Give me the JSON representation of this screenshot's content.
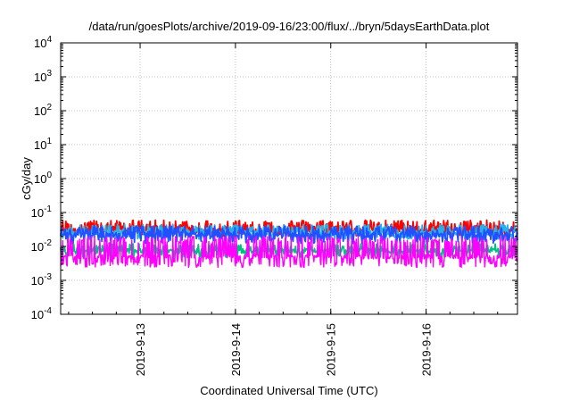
{
  "chart_data": {
    "type": "line",
    "title": "/data/run/goesPlots/archive/2019-09-16/23:00/flux/../bryn/5daysEarthData.plot",
    "xlabel": "Coordinated Universal Time (UTC)",
    "ylabel": "cGy/day",
    "yscale": "log",
    "ylim": [
      0.0001,
      10000
    ],
    "yticks": [
      {
        "value": 0.0001,
        "base": "10",
        "exp": "-4"
      },
      {
        "value": 0.001,
        "base": "10",
        "exp": "-3"
      },
      {
        "value": 0.01,
        "base": "10",
        "exp": "-2"
      },
      {
        "value": 0.1,
        "base": "10",
        "exp": "-1"
      },
      {
        "value": 1,
        "base": "10",
        "exp": "0"
      },
      {
        "value": 10,
        "base": "10",
        "exp": "1"
      },
      {
        "value": 100,
        "base": "10",
        "exp": "2"
      },
      {
        "value": 1000,
        "base": "10",
        "exp": "3"
      },
      {
        "value": 10000,
        "base": "10",
        "exp": "4"
      }
    ],
    "xlim": [
      "2019-09-12T04:00",
      "2019-09-16T23:00"
    ],
    "xticks": [
      {
        "value": "2019-09-13T00:00",
        "label": "2019-9-13"
      },
      {
        "value": "2019-09-14T00:00",
        "label": "2019-9-14"
      },
      {
        "value": "2019-09-15T00:00",
        "label": "2019-9-15"
      },
      {
        "value": "2019-09-16T00:00",
        "label": "2019-9-16"
      }
    ],
    "grid": true,
    "series": [
      {
        "color": "#ff0000",
        "level": 0.03,
        "noise_low": 0.025,
        "noise_high": 0.06
      },
      {
        "color": "#2ab0e8",
        "level": 0.026,
        "noise_low": 0.02,
        "noise_high": 0.045
      },
      {
        "color": "#2050ff",
        "level": 0.022,
        "noise_low": 0.015,
        "noise_high": 0.04
      },
      {
        "color": "#00c080",
        "level": 0.0075,
        "noise_low": 0.006,
        "noise_high": 0.012
      },
      {
        "color": "#ff00ff",
        "level": 0.005,
        "noise_low": 0.003,
        "noise_high": 0.02
      }
    ]
  }
}
